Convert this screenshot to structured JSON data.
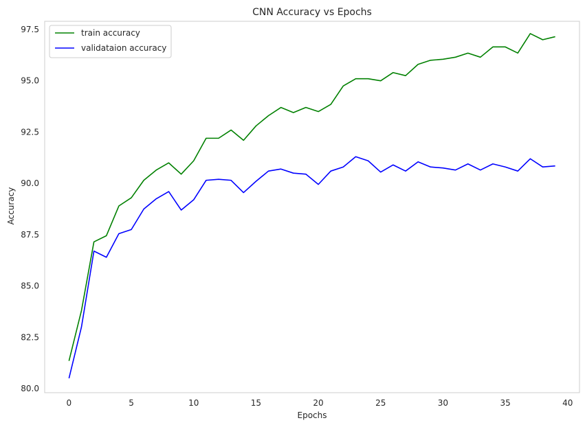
{
  "chart_data": {
    "type": "line",
    "title": "CNN Accuracy vs Epochs",
    "xlabel": "Epochs",
    "ylabel": "Accuracy",
    "xlim": [
      -1.95,
      40.95
    ],
    "ylim": [
      79.8,
      97.9
    ],
    "xticks": [
      0,
      5,
      10,
      15,
      20,
      25,
      30,
      35,
      40
    ],
    "yticks": [
      80.0,
      82.5,
      85.0,
      87.5,
      90.0,
      92.5,
      95.0,
      97.5
    ],
    "xtick_labels": [
      "0",
      "5",
      "10",
      "15",
      "20",
      "25",
      "30",
      "35",
      "40"
    ],
    "ytick_labels": [
      "80.0",
      "82.5",
      "85.0",
      "87.5",
      "90.0",
      "92.5",
      "95.0",
      "97.5"
    ],
    "grid": false,
    "legend_position": "top-left",
    "x": [
      0,
      1,
      2,
      3,
      4,
      5,
      6,
      7,
      8,
      9,
      10,
      11,
      12,
      13,
      14,
      15,
      16,
      17,
      18,
      19,
      20,
      21,
      22,
      23,
      24,
      25,
      26,
      27,
      28,
      29,
      30,
      31,
      32,
      33,
      34,
      35,
      36,
      37,
      38,
      39
    ],
    "series": [
      {
        "name": "train accuracy",
        "color": "#008000",
        "values": [
          81.35,
          83.8,
          87.15,
          87.45,
          88.9,
          89.3,
          90.15,
          90.65,
          91.0,
          90.45,
          91.1,
          92.2,
          92.2,
          92.6,
          92.1,
          92.8,
          93.3,
          93.7,
          93.45,
          93.7,
          93.5,
          93.85,
          94.75,
          95.1,
          95.1,
          95.0,
          95.4,
          95.25,
          95.8,
          96.0,
          96.05,
          96.15,
          96.35,
          96.15,
          96.65,
          96.65,
          96.35,
          97.3,
          97.0,
          97.15
        ]
      },
      {
        "name": "validataion accuracy",
        "color": "#0000ff",
        "values": [
          80.5,
          83.0,
          86.7,
          86.4,
          87.55,
          87.75,
          88.75,
          89.25,
          89.6,
          88.7,
          89.2,
          90.15,
          90.2,
          90.15,
          89.55,
          90.1,
          90.6,
          90.7,
          90.5,
          90.45,
          89.95,
          90.6,
          90.8,
          91.3,
          91.1,
          90.55,
          90.9,
          90.6,
          91.05,
          90.8,
          90.75,
          90.65,
          90.95,
          90.65,
          90.95,
          90.8,
          90.6,
          91.2,
          90.8,
          90.85
        ]
      }
    ]
  }
}
